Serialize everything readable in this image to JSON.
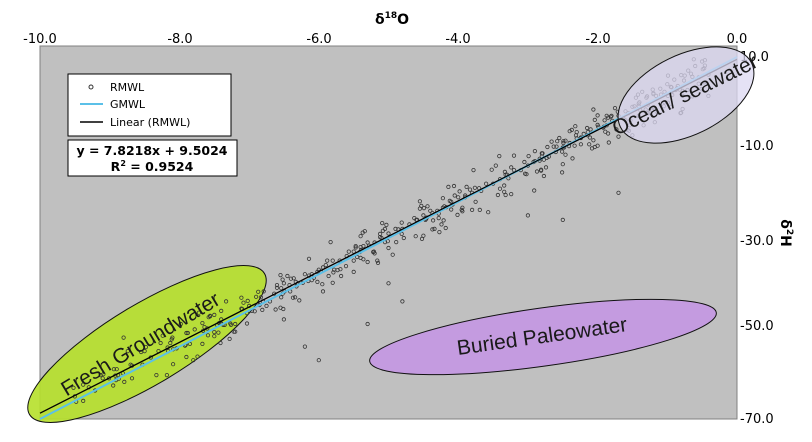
{
  "chart_data": {
    "type": "scatter",
    "title": "",
    "xlabel": "δ18O",
    "xlabel_main": "δ",
    "xlabel_sup": "18",
    "xlabel_tail": "O",
    "ylabel": "δ2H",
    "ylabel_main": "δ",
    "ylabel_sup": "2",
    "ylabel_tail": "H",
    "xlim": [
      -10.0,
      0.0
    ],
    "ylim": [
      -70.0,
      10.0
    ],
    "x_ticks": [
      "-10.0",
      "-8.0",
      "-6.0",
      "-4.0",
      "-2.0",
      "0.0"
    ],
    "y_ticks": [
      "10.0",
      "-10.0",
      "-30.0",
      "-50.0",
      "-70.0"
    ],
    "grid": false,
    "plot_background": "#c0c0c0",
    "x_axis_position": "top",
    "y_axis_position": "right",
    "legend_position": "top-left",
    "legend": [
      "RMWL",
      "GMWL",
      "Linear (RMWL)"
    ],
    "series": [
      {
        "name": "RMWL",
        "kind": "scatter",
        "color": "#333333",
        "note_points": "approx. 450 samples scattered along the meteoric line",
        "points": [
          [
            -9.5,
            -65
          ],
          [
            -9.3,
            -63
          ],
          [
            -9.1,
            -61
          ],
          [
            -8.9,
            -59
          ],
          [
            -8.7,
            -58
          ],
          [
            -8.8,
            -52
          ],
          [
            -8.5,
            -55
          ],
          [
            -8.3,
            -55
          ],
          [
            -8.1,
            -52
          ],
          [
            -7.9,
            -51
          ],
          [
            -7.8,
            -57
          ],
          [
            -7.6,
            -50
          ],
          [
            -7.5,
            -47
          ],
          [
            -7.4,
            -48
          ],
          [
            -7.2,
            -49
          ],
          [
            -7.0,
            -45
          ],
          [
            -6.9,
            -43
          ],
          [
            -6.8,
            -44
          ],
          [
            -6.7,
            -44
          ],
          [
            -6.6,
            -41
          ],
          [
            -6.5,
            -40
          ],
          [
            -6.5,
            -48
          ],
          [
            -6.4,
            -39
          ],
          [
            -6.3,
            -40
          ],
          [
            -6.2,
            -38
          ],
          [
            -6.2,
            -54
          ],
          [
            -6.1,
            -38
          ],
          [
            -6.0,
            -37
          ],
          [
            -6.0,
            -57
          ],
          [
            -5.9,
            -36
          ],
          [
            -5.8,
            -35
          ],
          [
            -5.7,
            -35
          ],
          [
            -5.6,
            -34
          ],
          [
            -5.5,
            -33
          ],
          [
            -5.4,
            -32
          ],
          [
            -5.3,
            -31
          ],
          [
            -5.2,
            -31
          ],
          [
            -5.1,
            -30
          ],
          [
            -5.0,
            -29
          ],
          [
            -5.0,
            -40
          ],
          [
            -4.9,
            -28
          ],
          [
            -4.8,
            -28
          ],
          [
            -4.7,
            -27
          ],
          [
            -4.6,
            -26
          ],
          [
            -4.5,
            -25
          ],
          [
            -4.4,
            -24
          ],
          [
            -4.3,
            -24
          ],
          [
            -4.2,
            -23
          ],
          [
            -4.1,
            -22
          ],
          [
            -4.0,
            -21
          ],
          [
            -3.9,
            -21
          ],
          [
            -3.8,
            -20
          ],
          [
            -3.7,
            -19
          ],
          [
            -3.6,
            -18
          ],
          [
            -3.5,
            -18
          ],
          [
            -3.4,
            -17
          ],
          [
            -3.3,
            -16
          ],
          [
            -3.2,
            -15
          ],
          [
            -3.1,
            -15
          ],
          [
            -3.0,
            -14
          ],
          [
            -2.9,
            -13
          ],
          [
            -2.8,
            -12
          ],
          [
            -2.7,
            -12
          ],
          [
            -2.6,
            -11
          ],
          [
            -2.5,
            -10
          ],
          [
            -2.4,
            -9
          ],
          [
            -2.3,
            -8
          ],
          [
            -2.2,
            -7
          ],
          [
            -2.1,
            -6
          ],
          [
            -2.0,
            -5
          ],
          [
            -1.9,
            -4
          ],
          [
            -1.8,
            -3
          ],
          [
            -1.7,
            -3
          ],
          [
            -1.6,
            -2
          ],
          [
            -1.5,
            -1
          ],
          [
            -1.4,
            0
          ],
          [
            -1.3,
            1
          ],
          [
            -1.2,
            2
          ],
          [
            -1.1,
            3
          ],
          [
            -1.0,
            4
          ],
          [
            -0.9,
            5
          ],
          [
            -0.8,
            6
          ],
          [
            -0.7,
            7
          ],
          [
            -0.6,
            8
          ],
          [
            -0.5,
            9
          ],
          [
            -3.0,
            -25
          ],
          [
            -2.5,
            -26
          ],
          [
            -1.7,
            -20
          ],
          [
            -5.3,
            -49
          ],
          [
            -4.8,
            -44
          ]
        ]
      },
      {
        "name": "GMWL",
        "kind": "line",
        "color": "#5bc0e8",
        "x": [
          -10.0,
          0.0
        ],
        "y": [
          -70.0,
          10.0
        ]
      },
      {
        "name": "Linear (RMWL)",
        "kind": "line",
        "color": "#000000",
        "x": [
          -10.0,
          0.0
        ],
        "y": [
          -68.7156,
          9.5024
        ]
      }
    ],
    "trendline": {
      "equation": "y = 7.8218x + 9.5024",
      "r2_prefix": "R",
      "r2_sup": "2",
      "r2_suffix": " = 0.9524",
      "slope": 7.8218,
      "intercept": 9.5024,
      "r2": 0.9524
    },
    "annotations": [
      {
        "label": "Fresh Groundwater",
        "color": "#b6e02a",
        "center": [
          -8.7,
          -56.5
        ]
      },
      {
        "label": "Buried Paleowater",
        "color": "#c49be0",
        "center": [
          -3.5,
          -53.5
        ]
      },
      {
        "label": "Ocean/ seawater",
        "color": "#d7d4f0",
        "center": [
          -1.1,
          1.5
        ]
      }
    ]
  }
}
